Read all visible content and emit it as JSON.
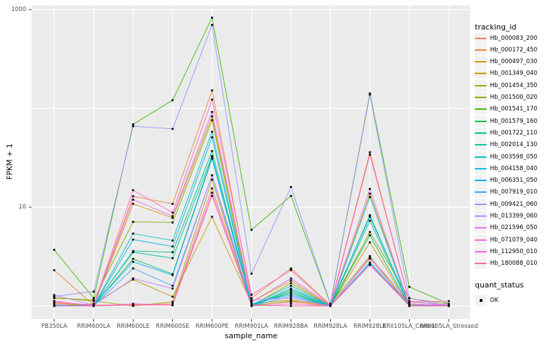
{
  "figure": {
    "panel_bg": "#EBEBEB",
    "grid_color": "#FFFFFF",
    "point_color": "#000000",
    "tick_color": "#333333",
    "tick_label_color": "#4D4D4D",
    "x_title": "sample_name",
    "y_title": "FPKM + 1",
    "y_tick_labels": [
      {
        "label": "10",
        "value": 10
      },
      {
        "label": "1000",
        "value": 1000
      }
    ],
    "grid_y_values": [
      1,
      10,
      100,
      1000
    ],
    "legend": {
      "tracking_title": "tracking_id",
      "quant_title": "quant_status",
      "quant_label": "OK",
      "key_bg": "#F2F2F2"
    }
  },
  "chart_data": {
    "type": "line",
    "title": "",
    "xlabel": "sample_name",
    "ylabel": "FPKM + 1",
    "y_scale": "log10",
    "ylim": [
      0.7,
      1100
    ],
    "grid": true,
    "legend_position": "right",
    "point_shape": "filled-square-black",
    "categories": [
      "PB350LA",
      "RRIM600LA",
      "RRIM600LE",
      "RRIM600SE",
      "RRIM600PE",
      "RRIM901LA",
      "RRIM928BA",
      "RRIM928LA",
      "RRIM928LE",
      "RRII105LA_Control",
      "RRII105LA_Stressed"
    ],
    "series": [
      {
        "name": "Hb_000083_200",
        "color": "#F8766D",
        "values": [
          1.05,
          1.02,
          1.03,
          1.05,
          15.5,
          1.02,
          1.1,
          1.0,
          3.0,
          1.05,
          1.0
        ]
      },
      {
        "name": "Hb_000172_450",
        "color": "#EA8331",
        "values": [
          2.3,
          1.02,
          12.9,
          10.8,
          152,
          1.2,
          2.4,
          1.02,
          36.0,
          1.1,
          1.02
        ]
      },
      {
        "name": "Hb_000497_030",
        "color": "#D89000",
        "values": [
          1.08,
          1.0,
          10.8,
          7.8,
          83.0,
          1.1,
          1.8,
          1.0,
          13.7,
          1.02,
          1.0
        ]
      },
      {
        "name": "Hb_001349_040",
        "color": "#C09B00",
        "values": [
          1.0,
          1.05,
          1.85,
          1.24,
          8.0,
          1.05,
          1.15,
          1.0,
          4.4,
          1.0,
          1.02
        ]
      },
      {
        "name": "Hb_001454_350",
        "color": "#A3A500",
        "values": [
          1.22,
          1.12,
          1.0,
          1.1,
          19.0,
          1.0,
          1.12,
          1.05,
          3.2,
          1.0,
          1.0
        ]
      },
      {
        "name": "Hb_001500_020",
        "color": "#7CAE00",
        "values": [
          1.2,
          1.15,
          7.1,
          7.0,
          76.0,
          1.0,
          1.7,
          1.0,
          5.6,
          1.19,
          1.05
        ]
      },
      {
        "name": "Hb_001541_170",
        "color": "#39B600",
        "values": [
          3.7,
          1.2,
          69.0,
          121,
          830,
          5.9,
          13.0,
          1.05,
          142,
          1.56,
          1.05
        ]
      },
      {
        "name": "Hb_001579_160",
        "color": "#00BB4E",
        "values": [
          1.0,
          1.0,
          3.0,
          2.1,
          32.0,
          1.02,
          1.35,
          1.0,
          5.2,
          1.0,
          1.0
        ]
      },
      {
        "name": "Hb_001722_110",
        "color": "#00BF7D",
        "values": [
          1.02,
          1.0,
          3.6,
          3.5,
          37.0,
          1.0,
          1.45,
          1.02,
          8.0,
          1.02,
          1.0
        ]
      },
      {
        "name": "Hb_002014_130",
        "color": "#00C1A3",
        "values": [
          1.0,
          1.02,
          3.5,
          3.05,
          33.0,
          1.0,
          1.4,
          1.0,
          7.3,
          1.0,
          1.0
        ]
      },
      {
        "name": "Hb_003598_050",
        "color": "#00BFC4",
        "values": [
          1.0,
          1.0,
          5.4,
          4.6,
          58.0,
          1.02,
          1.6,
          1.0,
          12.7,
          1.0,
          1.02
        ]
      },
      {
        "name": "Hb_004158_040",
        "color": "#00BAE0",
        "values": [
          1.02,
          1.0,
          4.7,
          4.0,
          51.0,
          1.0,
          1.5,
          1.0,
          8.3,
          1.0,
          1.0
        ]
      },
      {
        "name": "Hb_006351_050",
        "color": "#00B0F6",
        "values": [
          1.0,
          1.02,
          2.8,
          2.05,
          31.0,
          1.05,
          1.3,
          1.0,
          2.75,
          1.05,
          1.0
        ]
      },
      {
        "name": "Hb_007919_010",
        "color": "#35A2FF",
        "values": [
          1.02,
          1.0,
          2.4,
          1.6,
          21.0,
          1.0,
          1.25,
          1.0,
          2.7,
          1.0,
          1.0
        ]
      },
      {
        "name": "Hb_009421_060",
        "color": "#9590FF",
        "values": [
          1.25,
          1.4,
          66.0,
          62.0,
          700,
          2.12,
          16.0,
          1.05,
          138,
          1.2,
          1.0
        ]
      },
      {
        "name": "Hb_013399_060",
        "color": "#C77CFF",
        "values": [
          1.29,
          1.02,
          1.9,
          1.5,
          21.0,
          1.15,
          1.2,
          1.0,
          3.1,
          1.12,
          1.0
        ]
      },
      {
        "name": "Hb_021596_050",
        "color": "#E76BF3",
        "values": [
          1.0,
          1.0,
          11.9,
          8.1,
          92.0,
          1.1,
          1.9,
          1.02,
          15.3,
          1.0,
          1.05
        ]
      },
      {
        "name": "Hb_071079_040",
        "color": "#FA62DB",
        "values": [
          1.12,
          1.0,
          1.05,
          1.02,
          14.0,
          1.0,
          1.05,
          1.0,
          2.6,
          1.05,
          1.0
        ]
      },
      {
        "name": "Hb_112950_010",
        "color": "#FF61CC",
        "values": [
          1.1,
          1.02,
          14.9,
          8.8,
          123,
          1.3,
          2.3,
          1.0,
          34.0,
          1.1,
          1.12
        ]
      },
      {
        "name": "Hb_180088_010",
        "color": "#FF6A98",
        "values": [
          1.0,
          1.0,
          1.02,
          1.02,
          13.0,
          1.02,
          1.0,
          1.0,
          2.6,
          1.0,
          1.0
        ]
      }
    ],
    "quant_status": "OK"
  }
}
